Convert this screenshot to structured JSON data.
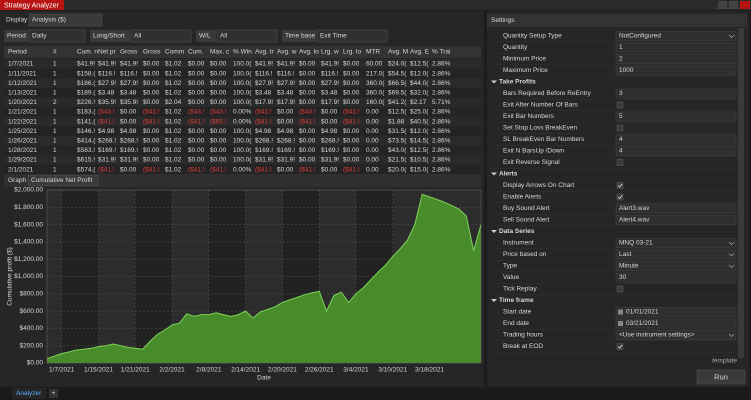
{
  "window": {
    "title": "Strategy Analyzer"
  },
  "toolbar": {
    "display_label": "Display",
    "display_value": "Analysis ($)"
  },
  "filters": [
    {
      "label": "Period",
      "value": "Daily"
    },
    {
      "label": "Long/Short",
      "value": "All"
    },
    {
      "label": "W/L",
      "value": "All"
    },
    {
      "label": "Time base",
      "value": "Exit Time"
    }
  ],
  "table": {
    "header": [
      "Period",
      "#",
      "Cum. n",
      "Net pr",
      "Gross",
      "Gross",
      "Comm",
      "Cum.",
      "Max. c",
      "% Win",
      "Avg. tr",
      "Avg. w",
      "Avg. lo",
      "Lrg. w",
      "Lrg. lo",
      "MTR",
      "Avg. M",
      "Avg. E",
      "% Trai"
    ],
    "rows": [
      [
        "1/7/2021",
        "1",
        "$41.9!",
        "$41.9!",
        "$41.9!",
        "$0.00",
        "$1.02",
        "$0.00",
        "$0.00",
        "100.0(",
        "$41.9!",
        "$41.9!",
        "$0.00",
        "$41.9!",
        "$0.00",
        "60.00",
        "$24.0(",
        "$12.5(",
        "2.86%"
      ],
      [
        "1/11/2021",
        "1",
        "$158.(",
        "$116.!",
        "$116.!",
        "$0.00",
        "$1.02",
        "$0.00",
        "$0.00",
        "100.0(",
        "$116.!",
        "$116.!",
        "$0.00",
        "$116.!",
        "$0.00",
        "217.0(",
        "$54.5(",
        "$12.0(",
        "2.86%"
      ],
      [
        "1/12/2021",
        "1",
        "$186.(",
        "$27.9!",
        "$27.9!",
        "$0.00",
        "$1.02",
        "$0.00",
        "$0.00",
        "100.0(",
        "$27.9!",
        "$27.9!",
        "$0.00",
        "$27.9!",
        "$0.00",
        "360.0(",
        "$66.5(",
        "$44.0(",
        "2.86%"
      ],
      [
        "1/13/2021",
        "1",
        "$189.(",
        "$3.48",
        "$3.48",
        "$0.00",
        "$1.02",
        "$0.00",
        "$0.00",
        "100.0(",
        "$3.48",
        "$3.48",
        "$0.00",
        "$3.48",
        "$0.00",
        "360.0(",
        "$69.5(",
        "$32.0(",
        "2.86%"
      ],
      [
        "1/20/2021",
        "2",
        "$226.!",
        "$35.9!",
        "$35.9!",
        "$0.00",
        "$2.04",
        "$0.00",
        "$0.00",
        "100.0(",
        "$17.9!",
        "$17.9!",
        "$0.00",
        "$17.9!",
        "$0.00",
        "160.0(",
        "$41.2(",
        "$2.17",
        "5.71%"
      ],
      [
        "1/21/2021",
        "1",
        "$183.(",
        "($43.!",
        "$0.00",
        "($43.!",
        "$1.02",
        "($43.!",
        "($43.!",
        "0.00%",
        "($43.!",
        "$0.00",
        "($43.!",
        "$0.00",
        "($43.!",
        "0.00",
        "$12.5(",
        "$25.0(",
        "2.86%"
      ],
      [
        "1/22/2021",
        "1",
        "$141.(",
        "($41.!",
        "$0.00",
        "($41.!",
        "$1.02",
        "($41.!",
        "($85.!",
        "0.00%",
        "($41.!",
        "$0.00",
        "($41.!",
        "$0.00",
        "($41.!",
        "0.00",
        "$1.88",
        "$40.5(",
        "2.86%"
      ],
      [
        "1/25/2021",
        "1",
        "$146.!",
        "$4.98",
        "$4.98",
        "$0.00",
        "$1.02",
        "$0.00",
        "$0.00",
        "100.0(",
        "$4.98",
        "$4.98",
        "$0.00",
        "$4.98",
        "$0.00",
        "0.00",
        "$31.5(",
        "$12.0(",
        "2.86%"
      ],
      [
        "1/26/2021",
        "1",
        "$414.(",
        "$268.!",
        "$268.!",
        "$0.00",
        "$1.02",
        "$0.00",
        "$0.00",
        "100.0(",
        "$268.!",
        "$268.!",
        "$0.00",
        "$268.!",
        "$0.00",
        "0.00",
        "$73.5(",
        "$14.5(",
        "2.86%"
      ],
      [
        "1/28/2021",
        "1",
        "$583.!",
        "$169.!",
        "$169.!",
        "$0.00",
        "$1.02",
        "$0.00",
        "$0.00",
        "100.0(",
        "$169.!",
        "$169.!",
        "$0.00",
        "$169.!",
        "$0.00",
        "0.00",
        "$43.0(",
        "$12.5(",
        "2.86%"
      ],
      [
        "1/29/2021",
        "1",
        "$615.!",
        "$31.9!",
        "$31.9!",
        "$0.00",
        "$1.02",
        "$0.00",
        "$0.00",
        "100.0(",
        "$31.9!",
        "$31.9!",
        "$0.00",
        "$31.9!",
        "$0.00",
        "0.00",
        "$21.5(",
        "$10.5(",
        "2.86%"
      ],
      [
        "2/1/2021",
        "1",
        "$574.(",
        "($41.!",
        "$0.00",
        "($41.!",
        "$1.02",
        "($41.!",
        "($41.!",
        "0.00%",
        "($41.!",
        "$0.00",
        "($41.!",
        "$0.00",
        "($41.!",
        "0.00",
        "$20.0(",
        "$15.0(",
        "2.86%"
      ]
    ]
  },
  "graph": {
    "label": "Graph",
    "value": "Cumulative Net Profit"
  },
  "chart_data": {
    "type": "area",
    "x_label": "Date",
    "y_label": "Cumulative profit ($)",
    "color": "#4e9e2c",
    "categories": [
      null,
      null,
      "1/7/2021",
      null,
      null,
      null,
      null,
      "1/15/2021",
      null,
      null,
      null,
      null,
      "1/21/2021",
      null,
      null,
      null,
      null,
      "2/2/2021",
      null,
      null,
      null,
      null,
      "2/8/2021",
      null,
      null,
      null,
      null,
      "2/14/2021",
      null,
      null,
      null,
      null,
      "2/20/2021",
      null,
      null,
      null,
      null,
      "2/26/2021",
      null,
      null,
      null,
      null,
      "3/4/2021",
      null,
      null,
      null,
      null,
      "3/10/2021",
      null,
      null,
      null,
      null,
      "3/18/2021",
      null,
      null,
      null,
      null,
      null,
      null,
      null
    ],
    "values": [
      50,
      80,
      110,
      130,
      150,
      160,
      170,
      190,
      200,
      220,
      200,
      180,
      170,
      160,
      250,
      330,
      380,
      440,
      460,
      570,
      540,
      560,
      560,
      580,
      560,
      540,
      560,
      600,
      520,
      590,
      620,
      650,
      700,
      730,
      760,
      790,
      810,
      830,
      600,
      780,
      820,
      700,
      800,
      870,
      960,
      1050,
      1130,
      1230,
      1320,
      1420,
      1600,
      1950,
      1920,
      1890,
      1860,
      1820,
      1780,
      1700,
      1300,
      1600
    ],
    "ylim": [
      0,
      2000
    ],
    "yticks": [
      {
        "value": 0,
        "label": "$0.00"
      },
      {
        "value": 200,
        "label": "$200.00"
      },
      {
        "value": 400,
        "label": "$400.00"
      },
      {
        "value": 600,
        "label": "$600.00"
      },
      {
        "value": 800,
        "label": "$800.00"
      },
      {
        "value": 1000,
        "label": "$1,000.00"
      },
      {
        "value": 1200,
        "label": "$1,200.00"
      },
      {
        "value": 1400,
        "label": "$1,400.00"
      },
      {
        "value": 1600,
        "label": "$1,600.00"
      },
      {
        "value": 1800,
        "label": "$1,800.00"
      },
      {
        "value": 2000,
        "label": "$2,000.00"
      }
    ],
    "grid": true
  },
  "settings": {
    "title": "Settings",
    "rows": [
      {
        "label": "Quantity Setup Type",
        "value": "NotConfigured",
        "control": "select"
      },
      {
        "label": "Quantity",
        "value": "1"
      },
      {
        "label": "Minimum Price",
        "value": "2"
      },
      {
        "label": "Maximum Price",
        "value": "1000"
      }
    ],
    "sections": [
      {
        "title": "Take Profits",
        "rows": [
          {
            "label": "Bars Required Before ReEntry",
            "value": "3"
          },
          {
            "label": "Exit After Number Of Bars",
            "value": false
          },
          {
            "label": "Exit Bar Numbers",
            "value": "5"
          },
          {
            "label": "Set Stop Loss BreakEven",
            "value": false
          },
          {
            "label": "SL BreakEven Bar Numbers",
            "value": "4"
          },
          {
            "label": "Exit N BarsUp /Down",
            "value": "4"
          },
          {
            "label": "Exit Reverse Signal",
            "value": false
          }
        ]
      },
      {
        "title": "Alerts",
        "rows": [
          {
            "label": "Display Arrows On Chart",
            "value": true
          },
          {
            "label": "Enable Alerts",
            "value": true
          },
          {
            "label": "Buy Sound Alert",
            "value": "Alert3.wav"
          },
          {
            "label": "Sell Sound Alert",
            "value": "Alert4.wav"
          }
        ]
      },
      {
        "title": "Data Series",
        "rows": [
          {
            "label": "Instrument",
            "value": "MNQ 03-21",
            "control": "select"
          },
          {
            "label": "Price based on",
            "value": "Last",
            "control": "select"
          },
          {
            "label": "Type",
            "value": "Minute",
            "control": "select"
          },
          {
            "label": "Value",
            "value": "30"
          },
          {
            "label": "Tick Replay",
            "value": false
          }
        ]
      },
      {
        "title": "Time frame",
        "rows": [
          {
            "label": "Start date",
            "value": "01/01/2021",
            "control": "date"
          },
          {
            "label": "End date",
            "value": "03/21/2021",
            "control": "date"
          },
          {
            "label": "Trading hours",
            "value": "<Use instrument settings>",
            "control": "select"
          },
          {
            "label": "Break at EOD",
            "value": true
          }
        ]
      }
    ]
  },
  "footer": {
    "template": "template",
    "run": "Run"
  },
  "tabs": [
    "Analyzer",
    "+"
  ]
}
